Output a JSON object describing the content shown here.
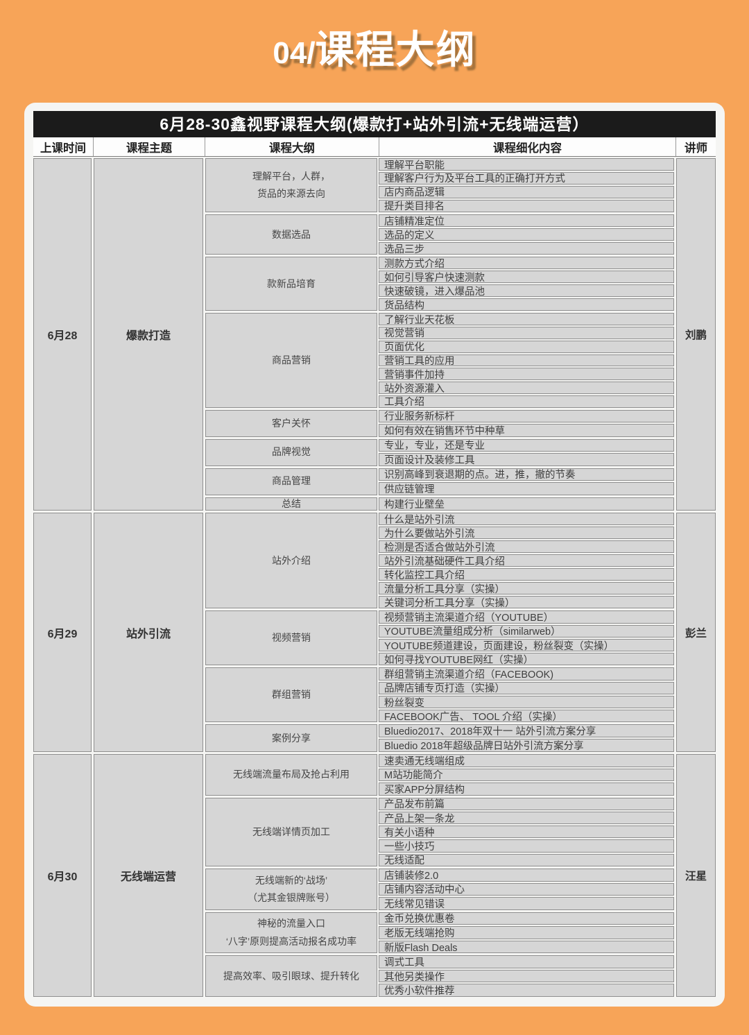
{
  "page": {
    "title_prefix": "04/",
    "title": "课程大纲"
  },
  "colors": {
    "background_orange": "#f7a458",
    "card_white": "#f5f5f3",
    "title_bar_black": "#1b1b1b",
    "cell_gray": "#d6d6d6",
    "cell_border": "#8f8f8f"
  },
  "table": {
    "title": "6月28-30鑫视野课程大纲(爆款打+站外引流+无线端运营）",
    "columns": [
      "上课时间",
      "课程主题",
      "课程大纲",
      "课程细化内容",
      "讲师"
    ],
    "days": [
      {
        "date": "6月28",
        "theme": "爆款打造",
        "lecturer": "刘鹏",
        "groups": [
          {
            "outline_lines": [
              "理解平台，人群，",
              "货品的来源去向"
            ],
            "details": [
              "理解平台职能",
              "理解客户行为及平台工具的正确打开方式",
              "店内商品逻辑",
              "提升类目排名"
            ]
          },
          {
            "outline_lines": [
              "数据选品"
            ],
            "details": [
              "店铺精准定位",
              "选品的定义",
              "选品三步"
            ]
          },
          {
            "outline_lines": [
              "款新品培育"
            ],
            "details": [
              "测款方式介绍",
              "如何引导客户快速测款",
              "快速破镜，进入爆品池",
              "货品结构"
            ]
          },
          {
            "outline_lines": [
              "商品营销"
            ],
            "details": [
              "了解行业天花板",
              "视觉营销",
              "页面优化",
              "营销工具的应用",
              "营销事件加持",
              "站外资源灌入",
              "工具介绍"
            ]
          },
          {
            "outline_lines": [
              "客户关怀"
            ],
            "details": [
              "行业服务新标杆",
              "如何有效在销售环节中种草"
            ]
          },
          {
            "outline_lines": [
              "品牌视觉"
            ],
            "details": [
              "专业，专业，还是专业",
              "页面设计及装修工具"
            ]
          },
          {
            "outline_lines": [
              "商品管理"
            ],
            "details": [
              "识别高峰到衰退期的点。进，推，撤的节奏",
              "供应链管理"
            ]
          },
          {
            "outline_lines": [
              "总结"
            ],
            "details": [
              "构建行业壁垒"
            ]
          }
        ]
      },
      {
        "date": "6月29",
        "theme": "站外引流",
        "lecturer": "彭兰",
        "groups": [
          {
            "outline_lines": [
              "站外介绍"
            ],
            "details": [
              "什么是站外引流",
              "为什么要做站外引流",
              "检测是否适合做站外引流",
              "站外引流基础硬件工具介绍",
              "转化监控工具介绍",
              "流量分析工具分享（实操）",
              "关键词分析工具分享（实操）"
            ]
          },
          {
            "outline_lines": [
              "视频营销"
            ],
            "details": [
              "视频营销主流渠道介绍（YOUTUBE）",
              "YOUTUBE流量组成分析（similarweb）",
              "YOUTUBE频道建设，页面建设，粉丝裂变（实操）",
              "如何寻找YOUTUBE网红（实操）"
            ]
          },
          {
            "outline_lines": [
              "群组营销"
            ],
            "details": [
              "群组营销主流渠道介绍（FACEBOOK)",
              "品牌店铺专页打造（实操）",
              "粉丝裂变",
              "FACEBOOK广告、 TOOL 介绍（实操）"
            ]
          },
          {
            "outline_lines": [
              "案例分享"
            ],
            "details": [
              "Bluedio2017、2018年双十一 站外引流方案分享",
              "Bluedio 2018年超级品牌日站外引流方案分享"
            ]
          }
        ]
      },
      {
        "date": "6月30",
        "theme": "无线端运营",
        "lecturer": "汪星",
        "groups": [
          {
            "outline_lines": [
              "无线端流量布局及抢占利用"
            ],
            "details": [
              "速卖通无线端组成",
              "M站功能简介",
              "买家APP分屏结构"
            ]
          },
          {
            "outline_lines": [
              "无线端详情页加工"
            ],
            "details": [
              "产品发布前篇",
              "产品上架一条龙",
              "有关小语种",
              "一些小技巧",
              "无线适配"
            ]
          },
          {
            "outline_lines": [
              "无线端新的‘战场’",
              "（尤其金银牌账号）"
            ],
            "details": [
              "店铺装修2.0",
              "店铺内容活动中心",
              "无线常见错误"
            ]
          },
          {
            "outline_lines": [
              "神秘的流量入口",
              "‘八字’原则提高活动报名成功率"
            ],
            "details": [
              "金币兑换优惠卷",
              "老版无线端抢购",
              "新版Flash Deals"
            ]
          },
          {
            "outline_lines": [
              "提高效率、吸引眼球、提升转化"
            ],
            "details": [
              "调式工具",
              "其他另类操作",
              "优秀小软件推荐"
            ]
          }
        ]
      }
    ]
  }
}
